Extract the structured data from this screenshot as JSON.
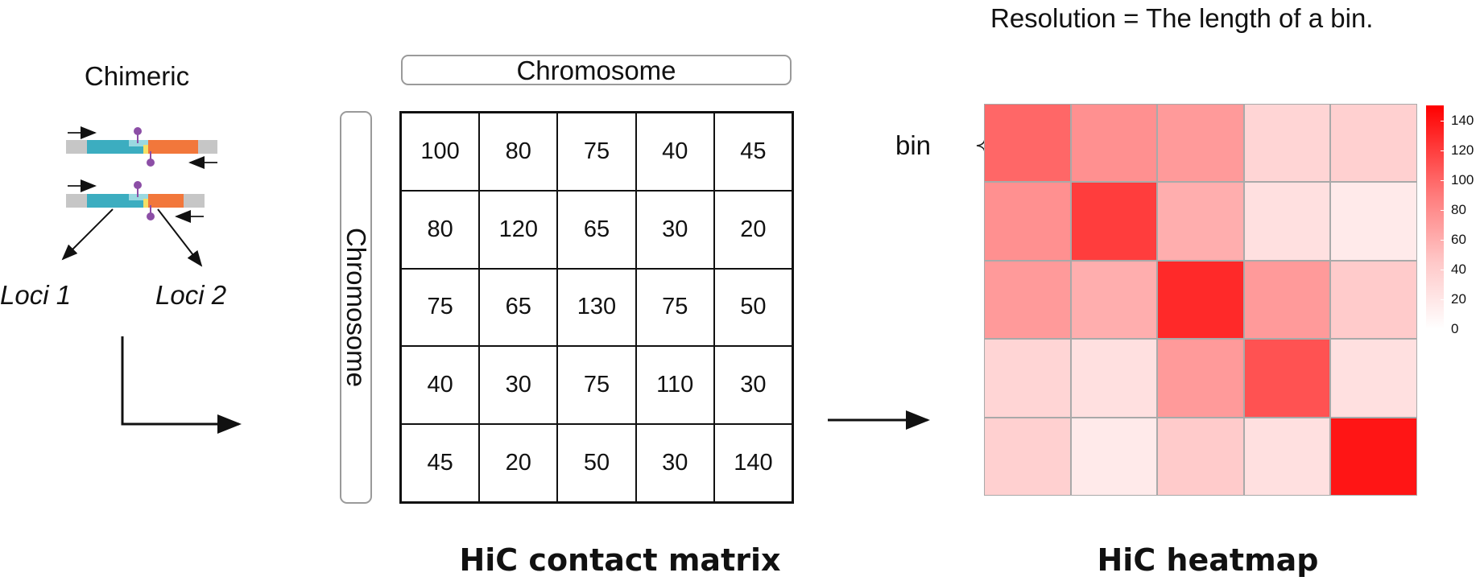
{
  "left_panel": {
    "title": "Chimeric",
    "loci_1": "Loci 1",
    "loci_2": "Loci 2",
    "colors": {
      "teal": "#3cadc0",
      "orange": "#f2773b",
      "yellow": "#f4df66",
      "grey": "#c6c6c6",
      "purple": "#8c4ea6"
    }
  },
  "matrix": {
    "axis_label_top": "Chromosome",
    "axis_label_left": "Chromosome",
    "caption": "HiC contact matrix",
    "rows": [
      [
        "100",
        "80",
        "75",
        "40",
        "45"
      ],
      [
        "80",
        "120",
        "65",
        "30",
        "20"
      ],
      [
        "75",
        "65",
        "130",
        "75",
        "50"
      ],
      [
        "40",
        "30",
        "75",
        "110",
        "30"
      ],
      [
        "45",
        "20",
        "50",
        "30",
        "140"
      ]
    ]
  },
  "heatmap": {
    "resolution_note": "Resolution = The length of a bin.",
    "bin_label": "bin",
    "caption": "HiC heatmap",
    "legend_ticks": [
      "140",
      "120",
      "100",
      "80",
      "60",
      "40",
      "20",
      "0"
    ],
    "legend_max": 150,
    "colors": {
      "high": "#ff0000",
      "mid": "#ff7b7b",
      "low": "#ffc8c8",
      "zero": "#ffffff"
    }
  },
  "chart_data": {
    "type": "heatmap",
    "title": "",
    "xlabel": "",
    "ylabel": "",
    "matrix": [
      [
        100,
        80,
        75,
        40,
        45
      ],
      [
        80,
        120,
        65,
        30,
        20
      ],
      [
        75,
        65,
        130,
        75,
        50
      ],
      [
        40,
        30,
        75,
        110,
        30
      ],
      [
        45,
        20,
        50,
        30,
        140
      ]
    ],
    "colorbar_ticks": [
      0,
      20,
      40,
      60,
      80,
      100,
      120,
      140
    ],
    "colorbar_range": [
      0,
      150
    ]
  }
}
